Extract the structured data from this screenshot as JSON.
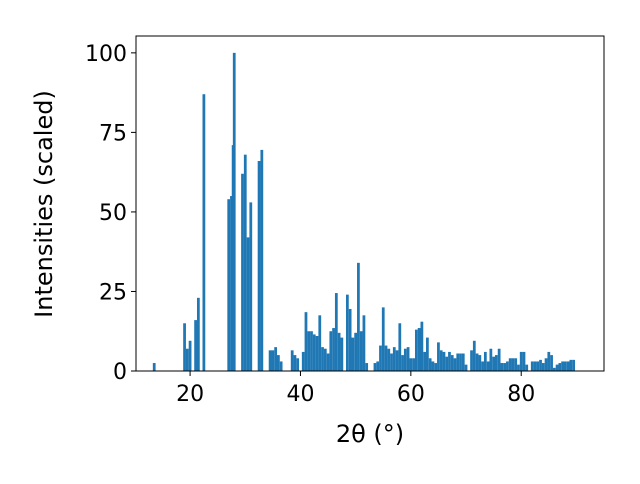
{
  "chart_data": {
    "type": "bar",
    "xlabel": "2θ (°)",
    "ylabel": "Intensities (scaled)",
    "color": "#1f77b4",
    "bar_width": 0.5,
    "xlim": [
      10.2,
      95
    ],
    "ylim": [
      0,
      105.3
    ],
    "xticks": [
      20,
      40,
      60,
      80
    ],
    "yticks": [
      0,
      25,
      50,
      75,
      100
    ],
    "x": [
      13.5,
      19,
      19.5,
      20,
      21,
      21.5,
      22.5,
      27,
      27.5,
      27.8,
      28,
      29.5,
      30,
      30.5,
      31,
      32.5,
      33,
      34.5,
      35,
      35.5,
      36,
      36.5,
      38.5,
      39,
      39.5,
      40.5,
      41,
      41.5,
      42,
      42.5,
      43,
      43.5,
      44,
      44.5,
      45,
      45.5,
      46,
      46.5,
      47,
      47.5,
      48.5,
      49,
      49.5,
      50,
      50.5,
      51,
      51.5,
      52,
      53.5,
      54,
      54.5,
      55,
      55.5,
      56,
      56.5,
      57,
      57.5,
      58,
      58.5,
      59,
      59.5,
      60,
      60.5,
      61,
      61.5,
      62,
      62.5,
      63,
      63.5,
      64,
      64.5,
      65,
      65.5,
      66,
      66.5,
      67,
      67.5,
      68,
      68.5,
      69,
      69.5,
      70,
      71,
      71.5,
      72,
      72.5,
      73,
      73.5,
      74,
      74.5,
      75,
      75.5,
      76,
      76.5,
      77,
      77.5,
      78,
      78.5,
      79,
      79.5,
      80,
      80.5,
      81,
      82,
      82.5,
      83,
      83.5,
      84,
      84.5,
      85,
      85.5,
      86,
      86.5,
      87,
      87.5,
      88,
      88.5,
      89,
      89.5
    ],
    "values": [
      2.5,
      15,
      7,
      9.5,
      16,
      23,
      87,
      54,
      55,
      71,
      100,
      62,
      68,
      42,
      53,
      66,
      69.5,
      6.5,
      6.5,
      7.5,
      5,
      3,
      6.5,
      5,
      4,
      6,
      18.5,
      12.5,
      12.5,
      11.5,
      11,
      17.5,
      7.5,
      7,
      5.5,
      12.5,
      13.5,
      24.5,
      12,
      10.5,
      24,
      19.5,
      10.5,
      12,
      34,
      12.5,
      17.5,
      2.5,
      2.5,
      3,
      8,
      20,
      8,
      7,
      5.5,
      7.5,
      6.5,
      15,
      5,
      7,
      7.5,
      4,
      4,
      13,
      13.5,
      15.5,
      6,
      10.5,
      4,
      3,
      2.5,
      9,
      6.5,
      6,
      4.5,
      6,
      5,
      4,
      5.5,
      5.5,
      5.5,
      2,
      6.5,
      9.5,
      5.5,
      5,
      3,
      6,
      3,
      7,
      4.5,
      5,
      7,
      2.5,
      2.5,
      3,
      4,
      4,
      4,
      2,
      6,
      6,
      2,
      3,
      3,
      3,
      3.5,
      2.5,
      4,
      6,
      5,
      1,
      2,
      2.5,
      3,
      3,
      3,
      3.5,
      3.5
    ]
  }
}
